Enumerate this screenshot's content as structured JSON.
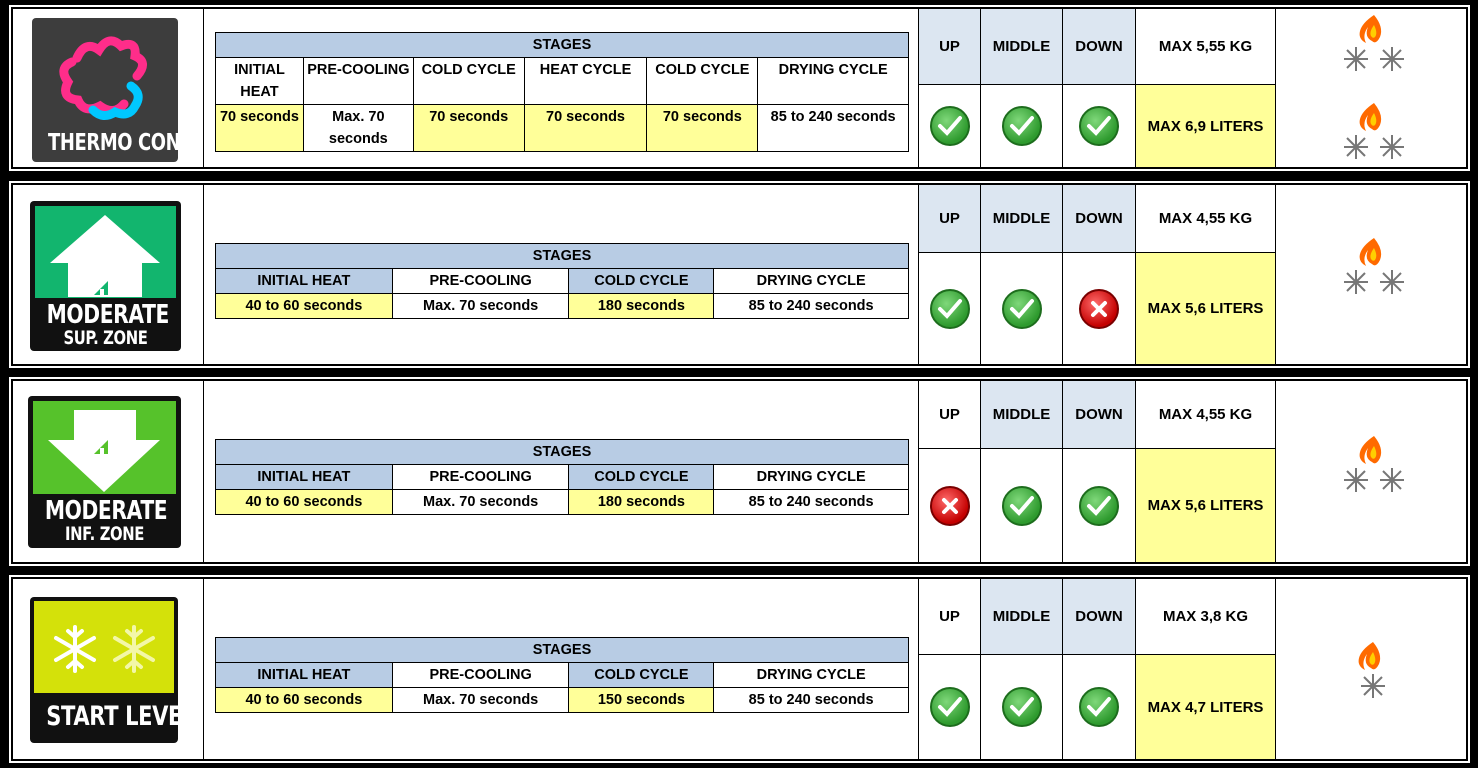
{
  "programs": [
    {
      "name": "THERMO CONTRAST",
      "subname": "",
      "stages_title": "STAGES",
      "headers": [
        "INITIAL HEAT",
        "PRE-COOLING",
        "COLD CYCLE",
        "HEAT CYCLE",
        "COLD CYCLE",
        "DRYING CYCLE"
      ],
      "values": [
        "70 seconds",
        "Max. 70 seconds",
        "70 seconds",
        "70 seconds",
        "70 seconds",
        "85 to 240 seconds"
      ],
      "positions": {
        "up": "UP",
        "middle": "MIDDLE",
        "down": "DOWN"
      },
      "up_ok": true,
      "middle_ok": true,
      "down_ok": true,
      "max_kg": "MAX 5,55 KG",
      "max_liters": "MAX 6,9 LITERS",
      "emblem_count": 2,
      "logo_color": "#3d3d3d"
    },
    {
      "name": "MODERATE",
      "subname": "SUP. ZONE",
      "stages_title": "STAGES",
      "headers": [
        "INITIAL HEAT",
        "PRE-COOLING",
        "COLD CYCLE",
        "DRYING CYCLE"
      ],
      "values": [
        "40 to  60 seconds",
        "Max. 70 seconds",
        "180 seconds",
        "85 to 240 seconds"
      ],
      "positions": {
        "up": "UP",
        "middle": "MIDDLE",
        "down": "DOWN"
      },
      "up_ok": true,
      "middle_ok": true,
      "down_ok": false,
      "max_kg": "MAX 4,55 KG",
      "max_liters": "MAX 5,6 LITERS",
      "emblem_count": 1,
      "logo_color": "#12b56e"
    },
    {
      "name": "MODERATE",
      "subname": "INF. ZONE",
      "stages_title": "STAGES",
      "headers": [
        "INITIAL HEAT",
        "PRE-COOLING",
        "COLD CYCLE",
        "DRYING CYCLE"
      ],
      "values": [
        "40 to  60 seconds",
        "Max. 70 seconds",
        "180 seconds",
        "85 to 240 seconds"
      ],
      "positions": {
        "up": "UP",
        "middle": "MIDDLE",
        "down": "DOWN"
      },
      "up_ok": false,
      "middle_ok": true,
      "down_ok": true,
      "max_kg": "MAX 4,55 KG",
      "max_liters": "MAX 5,6 LITERS",
      "emblem_count": 1,
      "logo_color": "#56c22b"
    },
    {
      "name": "START LEVEL",
      "subname": "",
      "stages_title": "STAGES",
      "headers": [
        "INITIAL HEAT",
        "PRE-COOLING",
        "COLD CYCLE",
        "DRYING CYCLE"
      ],
      "values": [
        "40 to  60 seconds",
        "Max. 70 seconds",
        "150 seconds",
        "85 to 240 seconds"
      ],
      "positions": {
        "up": "UP",
        "middle": "MIDDLE",
        "down": "DOWN"
      },
      "up_ok": true,
      "middle_ok": true,
      "down_ok": true,
      "max_kg": "MAX 3,8 KG",
      "max_liters": "MAX 4,7 LITERS",
      "emblem_count": 1,
      "logo_color": "#d4e10a"
    }
  ]
}
